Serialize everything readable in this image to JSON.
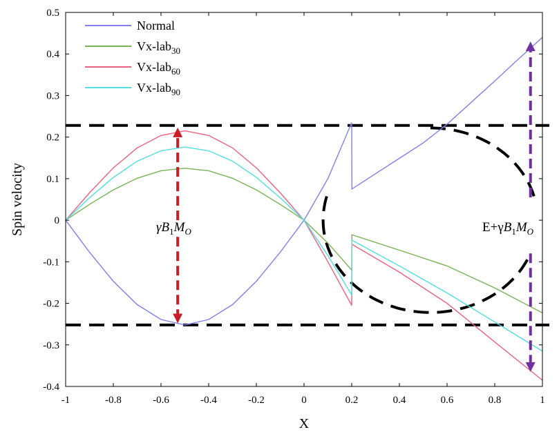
{
  "chart_data": {
    "type": "line",
    "xlabel": "X",
    "ylabel": "Spin velocity",
    "xlim": [
      -1,
      1
    ],
    "ylim": [
      -0.4,
      0.5
    ],
    "xticks": [
      -1,
      -0.8,
      -0.6,
      -0.4,
      -0.2,
      0,
      0.2,
      0.4,
      0.6,
      0.8,
      1
    ],
    "xtick_labels": [
      "-1",
      "-0.8",
      "-0.6",
      "-0.4",
      "-0.2",
      "0",
      "0.2",
      "0.4",
      "0.6",
      "0.8",
      "1"
    ],
    "yticks": [
      -0.4,
      -0.3,
      -0.2,
      -0.1,
      0,
      0.1,
      0.2,
      0.3,
      0.4,
      0.5
    ],
    "ytick_labels": [
      "-0.4",
      "-0.3",
      "-0.2",
      "-0.1",
      "0",
      "0.1",
      "0.2",
      "0.3",
      "0.4",
      "0.5"
    ],
    "grid": false,
    "legend_position": "top-left",
    "series": [
      {
        "name": "Normal",
        "legend_base": "Normal",
        "legend_sub": "",
        "color": "#7f7fef",
        "points": [
          [
            -1,
            0
          ],
          [
            -0.9,
            -0.077
          ],
          [
            -0.8,
            -0.147
          ],
          [
            -0.7,
            -0.203
          ],
          [
            -0.6,
            -0.239
          ],
          [
            -0.5,
            -0.252
          ],
          [
            -0.4,
            -0.239
          ],
          [
            -0.3,
            -0.203
          ],
          [
            -0.2,
            -0.147
          ],
          [
            -0.1,
            -0.077
          ],
          [
            0,
            0
          ],
          [
            0.1,
            0.1
          ],
          [
            0.2,
            0.235
          ],
          [
            0.201,
            0.075
          ],
          [
            0.3,
            0.112
          ],
          [
            0.4,
            0.149
          ],
          [
            0.5,
            0.186
          ],
          [
            0.6,
            0.231
          ],
          [
            0.7,
            0.283
          ],
          [
            0.8,
            0.335
          ],
          [
            0.9,
            0.388
          ],
          [
            1,
            0.44
          ]
        ]
      },
      {
        "name": "Vx-lab30",
        "legend_base": "Vx-lab",
        "legend_sub": "30",
        "color": "#77b255",
        "points": [
          [
            -1,
            0
          ],
          [
            -0.9,
            0.038
          ],
          [
            -0.8,
            0.073
          ],
          [
            -0.7,
            0.101
          ],
          [
            -0.6,
            0.119
          ],
          [
            -0.5,
            0.125
          ],
          [
            -0.4,
            0.119
          ],
          [
            -0.3,
            0.101
          ],
          [
            -0.2,
            0.073
          ],
          [
            -0.1,
            0.038
          ],
          [
            0,
            0
          ],
          [
            0.1,
            -0.055
          ],
          [
            0.2,
            -0.12
          ],
          [
            0.201,
            -0.035
          ],
          [
            0.4,
            -0.072
          ],
          [
            0.6,
            -0.11
          ],
          [
            0.8,
            -0.163
          ],
          [
            1,
            -0.223
          ]
        ]
      },
      {
        "name": "Vx-lab60",
        "legend_base": "Vx-lab",
        "legend_sub": "60",
        "color": "#ef5f7f",
        "points": [
          [
            -1,
            0
          ],
          [
            -0.9,
            0.066
          ],
          [
            -0.8,
            0.126
          ],
          [
            -0.7,
            0.174
          ],
          [
            -0.6,
            0.204
          ],
          [
            -0.5,
            0.215
          ],
          [
            -0.4,
            0.204
          ],
          [
            -0.3,
            0.174
          ],
          [
            -0.2,
            0.126
          ],
          [
            -0.1,
            0.066
          ],
          [
            0,
            0
          ],
          [
            0.1,
            -0.1
          ],
          [
            0.2,
            -0.205
          ],
          [
            0.201,
            -0.058
          ],
          [
            0.4,
            -0.125
          ],
          [
            0.6,
            -0.2
          ],
          [
            0.8,
            -0.293
          ],
          [
            1,
            -0.385
          ]
        ]
      },
      {
        "name": "Vx-lab90",
        "legend_base": "Vx-lab",
        "legend_sub": "90",
        "color": "#4fdfdf",
        "points": [
          [
            -1,
            0
          ],
          [
            -0.9,
            0.054
          ],
          [
            -0.8,
            0.103
          ],
          [
            -0.7,
            0.142
          ],
          [
            -0.6,
            0.167
          ],
          [
            -0.5,
            0.176
          ],
          [
            -0.4,
            0.167
          ],
          [
            -0.3,
            0.142
          ],
          [
            -0.2,
            0.103
          ],
          [
            -0.1,
            0.054
          ],
          [
            0,
            0
          ],
          [
            0.1,
            -0.085
          ],
          [
            0.2,
            -0.18
          ],
          [
            0.201,
            -0.048
          ],
          [
            0.4,
            -0.11
          ],
          [
            0.6,
            -0.175
          ],
          [
            0.8,
            -0.245
          ],
          [
            1,
            -0.315
          ]
        ]
      }
    ],
    "reference_lines": [
      {
        "type": "horizontal",
        "y": 0.228,
        "style": "dashed",
        "color": "#000000"
      },
      {
        "type": "horizontal",
        "y": -0.252,
        "style": "dashed",
        "color": "#000000"
      }
    ],
    "dashed_curves": [
      {
        "color": "#000000",
        "center": [
          0.53,
          0
        ],
        "rx": 0.45,
        "ry": 0.222,
        "from_deg": 90,
        "to_deg": 15
      },
      {
        "color": "#000000",
        "center": [
          0.53,
          0
        ],
        "rx": 0.45,
        "ry": 0.222,
        "from_deg": 165,
        "to_deg": 335
      }
    ],
    "annotations": [
      {
        "text_prefix": "γ",
        "text_main": "B",
        "sub1": "1",
        "text_mid": "M",
        "sub2": "O",
        "x": -0.53,
        "y": 0
      },
      {
        "text_prefix": "E+γ",
        "text_main": "B",
        "sub1": "1",
        "text_mid": "M",
        "sub2": "O",
        "x": 0.95,
        "y": 0
      }
    ],
    "arrows": [
      {
        "color": "#c81d25",
        "x": -0.53,
        "from": 0.0,
        "to": 0.223,
        "style": "dashed"
      },
      {
        "color": "#c81d25",
        "x": -0.53,
        "from": -0.04,
        "to": -0.248,
        "style": "dashed"
      },
      {
        "color": "#7030a0",
        "x": 0.95,
        "from": 0.055,
        "to": 0.43,
        "style": "dashed"
      },
      {
        "color": "#7030a0",
        "x": 0.95,
        "from": -0.08,
        "to": -0.365,
        "style": "dashed"
      }
    ]
  }
}
